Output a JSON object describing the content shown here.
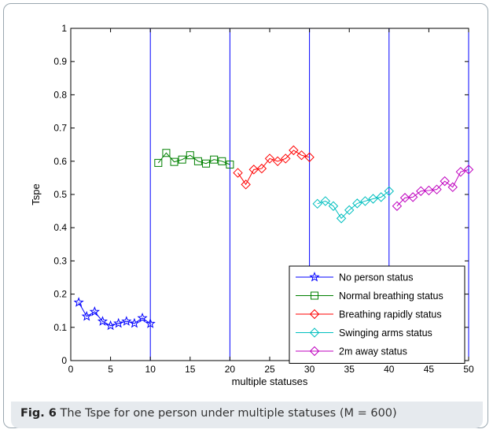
{
  "caption": {
    "label": "Fig. 6",
    "text": "The Tspe for one person under multiple statuses (M = 600)"
  },
  "chart_data": {
    "type": "line",
    "xlabel": "multiple statuses",
    "ylabel": "Tspe",
    "xlim": [
      0,
      50
    ],
    "ylim": [
      0,
      1
    ],
    "xticks": [
      0,
      5,
      10,
      15,
      20,
      25,
      30,
      35,
      40,
      45,
      50
    ],
    "yticks": [
      0,
      0.1,
      0.2,
      0.3,
      0.4,
      0.5,
      0.6,
      0.7,
      0.8,
      0.9,
      1
    ],
    "ytick_labels": [
      "0",
      "0.1",
      "0.2",
      "0.3",
      "0.4",
      "0.5",
      "0.6",
      "0.7",
      "0.8",
      "0.9",
      "1"
    ],
    "vlines": [
      10,
      20,
      30,
      40,
      50
    ],
    "vline_color": "#0000ff",
    "grid": false,
    "legend_position": "bottom-right",
    "series": [
      {
        "name": "No person status",
        "color": "#0000ff",
        "marker": "star",
        "x": [
          1,
          2,
          3,
          4,
          5,
          6,
          7,
          8,
          9,
          10
        ],
        "y": [
          0.175,
          0.133,
          0.147,
          0.118,
          0.105,
          0.112,
          0.118,
          0.112,
          0.128,
          0.111
        ]
      },
      {
        "name": "Normal breathing status",
        "color": "#008000",
        "marker": "square",
        "x": [
          11,
          12,
          13,
          14,
          15,
          16,
          17,
          18,
          19,
          20
        ],
        "y": [
          0.595,
          0.625,
          0.598,
          0.605,
          0.618,
          0.6,
          0.593,
          0.605,
          0.6,
          0.59
        ]
      },
      {
        "name": "Breathing rapidly status",
        "color": "#ff0000",
        "marker": "diamond",
        "x": [
          21,
          22,
          23,
          24,
          25,
          26,
          27,
          28,
          29,
          30
        ],
        "y": [
          0.565,
          0.53,
          0.575,
          0.578,
          0.608,
          0.6,
          0.608,
          0.633,
          0.618,
          0.612
        ]
      },
      {
        "name": " Swinging arms status",
        "color": "#00bfbf",
        "marker": "diamond",
        "x": [
          31,
          32,
          33,
          34,
          35,
          36,
          37,
          38,
          39,
          40
        ],
        "y": [
          0.472,
          0.48,
          0.465,
          0.428,
          0.453,
          0.473,
          0.48,
          0.487,
          0.492,
          0.51
        ]
      },
      {
        "name": "2m away status",
        "color": "#bf00bf",
        "marker": "diamond",
        "x": [
          41,
          42,
          43,
          44,
          45,
          46,
          47,
          48,
          49,
          50
        ],
        "y": [
          0.465,
          0.49,
          0.492,
          0.51,
          0.512,
          0.515,
          0.54,
          0.522,
          0.568,
          0.575
        ]
      }
    ]
  }
}
